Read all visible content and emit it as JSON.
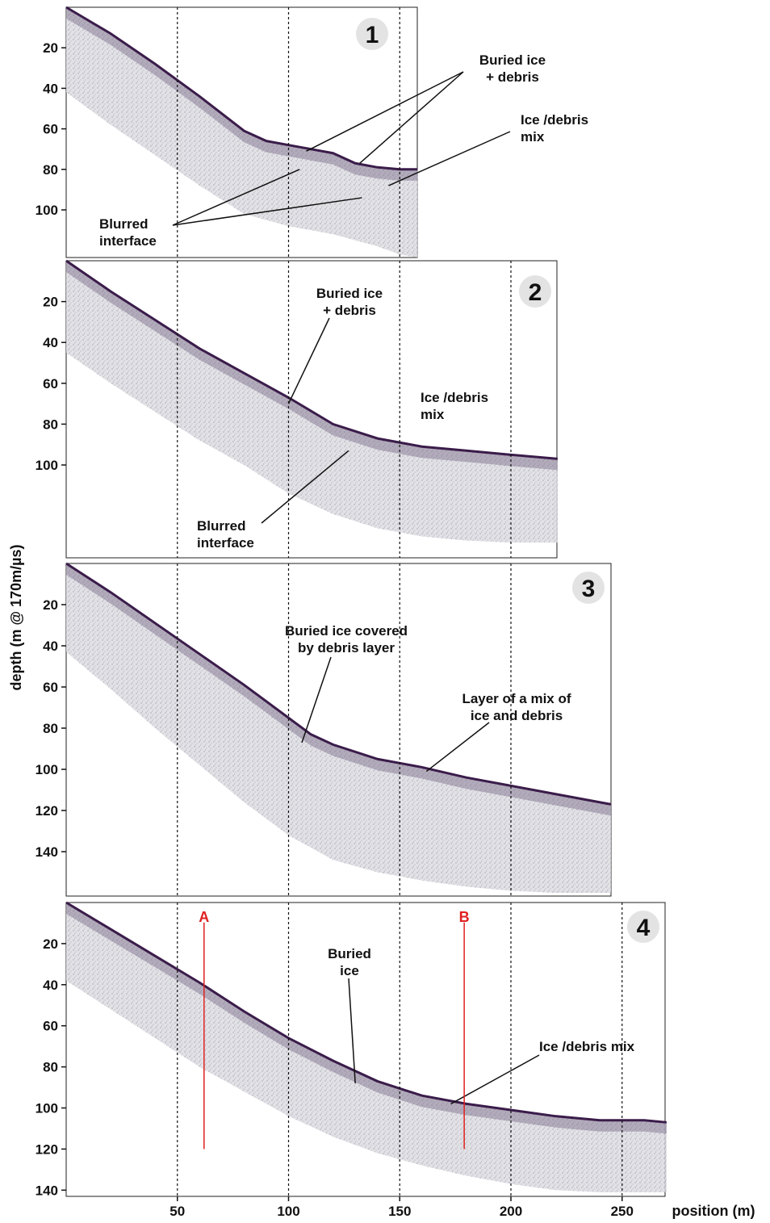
{
  "chart_data": {
    "type": "radargram",
    "ylabel": "depth (m @ 170m/µs)",
    "xlabel": "position (m)",
    "x_ticks": [
      50,
      100,
      150,
      200,
      250
    ],
    "xlim": [
      0,
      270
    ],
    "panels": [
      {
        "id": "1",
        "xlim": [
          0,
          158
        ],
        "ylim": [
          0,
          122
        ],
        "y_ticks": [
          20,
          40,
          60,
          80,
          100
        ],
        "gridlines_x": [
          50,
          100,
          150
        ],
        "surface": [
          [
            0,
            0
          ],
          [
            20,
            13
          ],
          [
            40,
            28
          ],
          [
            60,
            44
          ],
          [
            80,
            61
          ],
          [
            90,
            66
          ],
          [
            100,
            68
          ],
          [
            110,
            70
          ],
          [
            120,
            72
          ],
          [
            130,
            77
          ],
          [
            140,
            79
          ],
          [
            150,
            80
          ],
          [
            158,
            80
          ]
        ],
        "base": [
          [
            0,
            42
          ],
          [
            20,
            58
          ],
          [
            40,
            73
          ],
          [
            60,
            88
          ],
          [
            80,
            102
          ],
          [
            100,
            108
          ],
          [
            120,
            112
          ],
          [
            140,
            118
          ],
          [
            150,
            122
          ],
          [
            158,
            124
          ]
        ],
        "annotations": [
          {
            "text": [
              "Buried ice",
              "+ debris"
            ],
            "points": [
              [
                108,
                71
              ],
              [
                132,
                77
              ]
            ]
          },
          {
            "text": [
              "Ice /debris",
              "mix"
            ],
            "points": [
              [
                145,
                88
              ]
            ]
          },
          {
            "text": [
              "Blurred",
              "interface"
            ],
            "points": [
              [
                105,
                80
              ],
              [
                133,
                94
              ]
            ]
          }
        ]
      },
      {
        "id": "2",
        "xlim": [
          0,
          221
        ],
        "ylim": [
          0,
          140
        ],
        "y_ticks": [
          20,
          40,
          60,
          80,
          100
        ],
        "gridlines_x": [
          50,
          100,
          150,
          200
        ],
        "surface": [
          [
            0,
            0
          ],
          [
            20,
            15
          ],
          [
            40,
            29
          ],
          [
            60,
            43
          ],
          [
            80,
            55
          ],
          [
            100,
            67
          ],
          [
            120,
            80
          ],
          [
            140,
            87
          ],
          [
            160,
            91
          ],
          [
            180,
            93
          ],
          [
            200,
            95
          ],
          [
            221,
            97
          ]
        ],
        "base": [
          [
            0,
            45
          ],
          [
            20,
            60
          ],
          [
            40,
            74
          ],
          [
            60,
            88
          ],
          [
            80,
            100
          ],
          [
            100,
            114
          ],
          [
            120,
            124
          ],
          [
            140,
            131
          ],
          [
            160,
            135
          ],
          [
            180,
            137
          ],
          [
            200,
            138
          ],
          [
            221,
            138
          ]
        ],
        "annotations": [
          {
            "text": [
              "Buried ice",
              "+ debris"
            ],
            "points": [
              [
                100,
                70
              ]
            ]
          },
          {
            "text": [
              "Ice /debris",
              "mix"
            ],
            "points": []
          },
          {
            "text": [
              "Blurred",
              "interface"
            ],
            "points": [
              [
                127,
                93
              ]
            ]
          }
        ]
      },
      {
        "id": "3",
        "xlim": [
          0,
          245
        ],
        "ylim": [
          0,
          160
        ],
        "y_ticks": [
          20,
          40,
          60,
          80,
          100,
          120,
          140
        ],
        "gridlines_x": [
          50,
          100,
          150,
          200
        ],
        "surface": [
          [
            0,
            0
          ],
          [
            20,
            14
          ],
          [
            40,
            29
          ],
          [
            60,
            44
          ],
          [
            80,
            59
          ],
          [
            100,
            75
          ],
          [
            110,
            83
          ],
          [
            120,
            88
          ],
          [
            140,
            95
          ],
          [
            160,
            99
          ],
          [
            180,
            104
          ],
          [
            200,
            108
          ],
          [
            220,
            112
          ],
          [
            245,
            117
          ]
        ],
        "base": [
          [
            0,
            43
          ],
          [
            20,
            61
          ],
          [
            40,
            80
          ],
          [
            60,
            98
          ],
          [
            80,
            116
          ],
          [
            100,
            132
          ],
          [
            120,
            144
          ],
          [
            140,
            150
          ],
          [
            160,
            154
          ],
          [
            180,
            157
          ],
          [
            200,
            159
          ],
          [
            220,
            160
          ],
          [
            245,
            160
          ]
        ],
        "annotations": [
          {
            "text": [
              "Buried ice covered",
              "by debris layer"
            ],
            "points": [
              [
                106,
                87
              ]
            ]
          },
          {
            "text": [
              "Layer of a mix of",
              "ice and debris"
            ],
            "points": [
              [
                162,
                101
              ]
            ]
          }
        ]
      },
      {
        "id": "4",
        "xlim": [
          0,
          270
        ],
        "ylim": [
          0,
          142
        ],
        "y_ticks": [
          20,
          40,
          60,
          80,
          100,
          120,
          140
        ],
        "gridlines_x": [
          50,
          100,
          150,
          200,
          250
        ],
        "surface": [
          [
            0,
            0
          ],
          [
            20,
            13
          ],
          [
            40,
            26
          ],
          [
            60,
            39
          ],
          [
            80,
            53
          ],
          [
            100,
            66
          ],
          [
            120,
            77
          ],
          [
            140,
            87
          ],
          [
            160,
            94
          ],
          [
            180,
            98
          ],
          [
            200,
            101
          ],
          [
            220,
            104
          ],
          [
            240,
            106
          ],
          [
            260,
            106
          ],
          [
            270,
            107
          ]
        ],
        "base": [
          [
            0,
            38
          ],
          [
            20,
            52
          ],
          [
            40,
            66
          ],
          [
            60,
            80
          ],
          [
            80,
            92
          ],
          [
            100,
            104
          ],
          [
            120,
            114
          ],
          [
            140,
            122
          ],
          [
            160,
            128
          ],
          [
            180,
            133
          ],
          [
            200,
            137
          ],
          [
            220,
            140
          ],
          [
            240,
            141
          ],
          [
            270,
            141
          ]
        ],
        "annotations": [
          {
            "text": [
              "Buried",
              "ice"
            ],
            "points": [
              [
                130,
                88
              ]
            ]
          },
          {
            "text": [
              "Ice /debris mix"
            ],
            "points": [
              [
                173,
                98
              ]
            ]
          }
        ],
        "markers": [
          {
            "label": "A",
            "x": 62,
            "y_range": [
              5,
              120
            ]
          },
          {
            "label": "B",
            "x": 179,
            "y_range": [
              5,
              120
            ]
          }
        ]
      }
    ]
  },
  "colors": {
    "marker": "#e02020",
    "surface": "#3a1c4a",
    "speckle": "#9a9aa6"
  }
}
